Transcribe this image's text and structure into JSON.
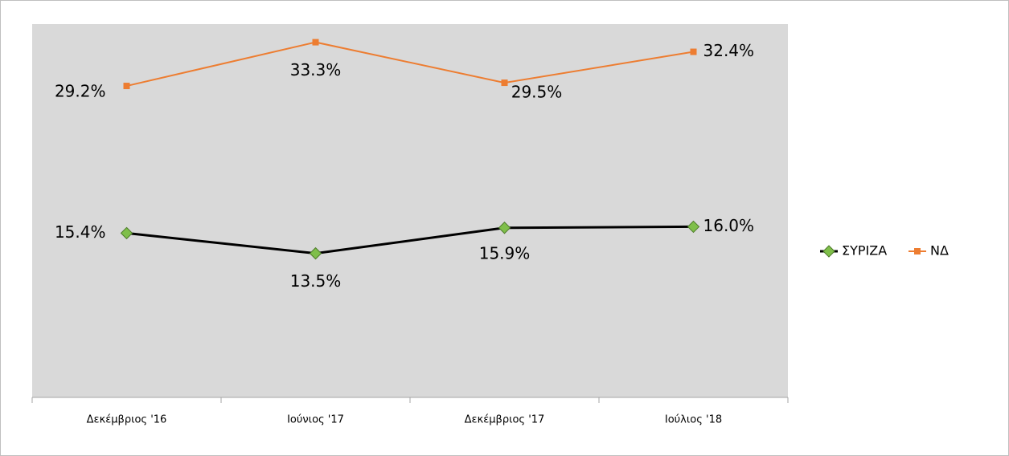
{
  "chart_data": {
    "type": "line",
    "categories": [
      "Δεκέμβριος '16",
      "Ιούνιος '17",
      "Δεκέμβριος '17",
      "Ιούλιος '18"
    ],
    "series": [
      {
        "name": "ΣΥΡΙΖΑ",
        "color": "#000000",
        "marker_color": "#7fbf4a",
        "marker": "diamond",
        "values": [
          15.4,
          13.5,
          15.9,
          16.0
        ],
        "value_labels": [
          "15.4%",
          "13.5%",
          "15.9%",
          "16.0%"
        ]
      },
      {
        "name": "ΝΔ",
        "color": "#ed7d31",
        "marker_color": "#ed7d31",
        "marker": "square",
        "values": [
          29.2,
          33.3,
          29.5,
          32.4
        ],
        "value_labels": [
          "29.2%",
          "33.3%",
          "29.5%",
          "32.4%"
        ]
      }
    ],
    "ylim": [
      0,
      35
    ],
    "legend": "right"
  }
}
